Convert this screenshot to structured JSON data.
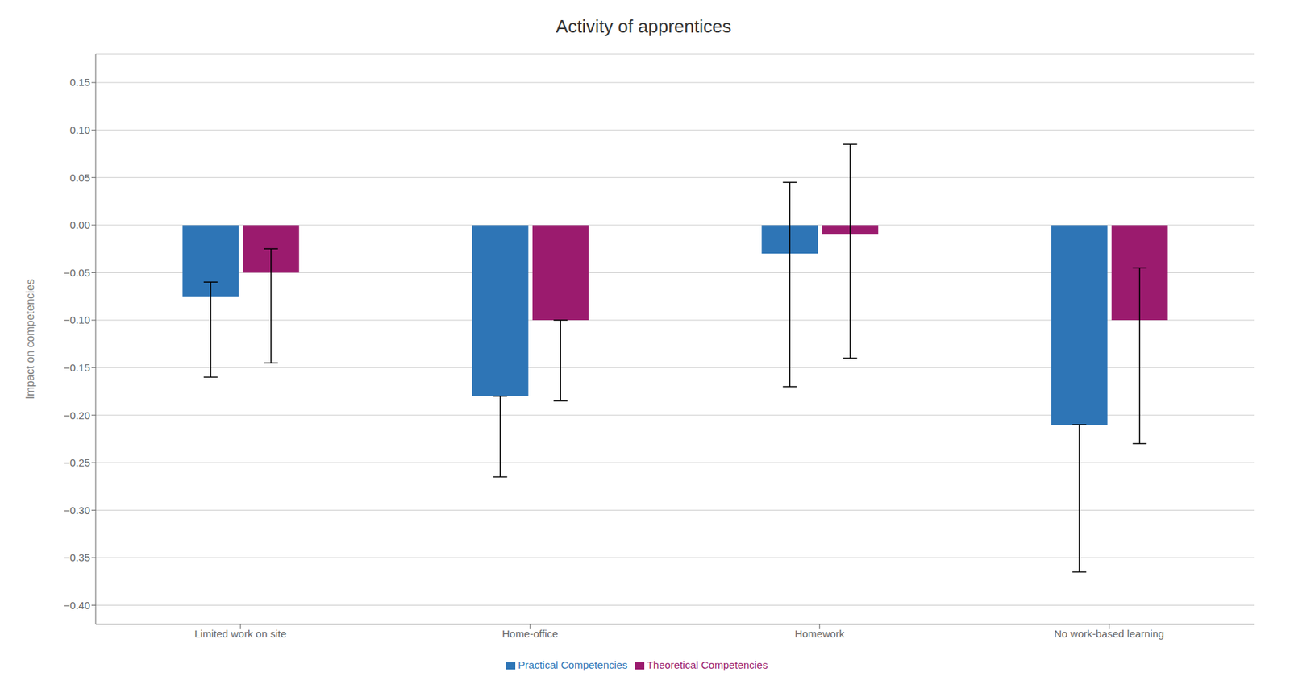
{
  "chart_data": {
    "type": "bar",
    "title": "Activity of apprentices",
    "ylabel": "Impact on competencies",
    "categories": [
      "Limited work on site",
      "Home-office",
      "Homework",
      "No work-based learning"
    ],
    "series": [
      {
        "name": "Practical Competencies",
        "color": "#2E75B6",
        "values": [
          -0.075,
          -0.18,
          -0.03,
          -0.21
        ],
        "err_up": [
          0.015,
          0.0,
          0.075,
          0.0
        ],
        "err_down": [
          0.085,
          0.085,
          0.14,
          0.155
        ]
      },
      {
        "name": "Theoretical Competencies",
        "color": "#9B1B6E",
        "values": [
          -0.05,
          -0.1,
          -0.01,
          -0.1
        ],
        "err_up": [
          0.025,
          0.0,
          0.095,
          0.055
        ],
        "err_down": [
          0.095,
          0.085,
          0.13,
          0.13
        ]
      }
    ],
    "ylim": [
      -0.42,
      0.18
    ],
    "yticks": [
      {
        "value": -0.4,
        "label": "−0.40"
      },
      {
        "value": -0.35,
        "label": "−0.35"
      },
      {
        "value": -0.3,
        "label": "−0.30"
      },
      {
        "value": -0.25,
        "label": "−0.25"
      },
      {
        "value": -0.2,
        "label": "−0.20"
      },
      {
        "value": -0.15,
        "label": "−0.15"
      },
      {
        "value": -0.1,
        "label": "−0.10"
      },
      {
        "value": -0.05,
        "label": "−0.05"
      },
      {
        "value": 0,
        "label": "0.00"
      },
      0.05,
      {
        "value": 0.1,
        "label": "0.10"
      },
      0.15
    ],
    "grid": true,
    "legend": "bottom"
  }
}
